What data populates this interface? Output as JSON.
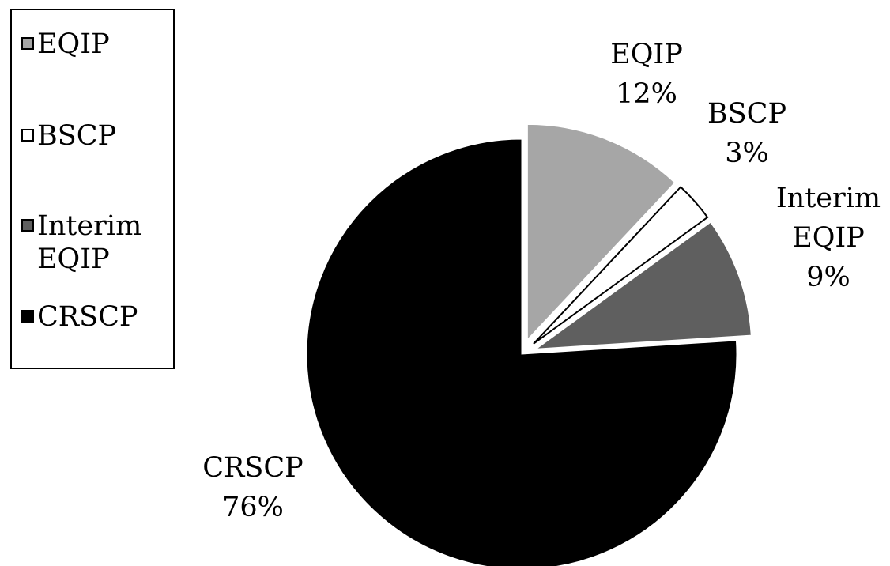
{
  "chart_data": {
    "type": "pie",
    "title": "",
    "slices": [
      {
        "label": "EQIP",
        "label_lines": [
          "EQIP"
        ],
        "value": 12,
        "value_label": "12%",
        "color": "#a6a6a6"
      },
      {
        "label": "BSCP",
        "label_lines": [
          "BSCP"
        ],
        "value": 3,
        "value_label": "3%",
        "color": "#ffffff"
      },
      {
        "label": "Interim EQIP",
        "label_lines": [
          "Interim",
          "EQIP"
        ],
        "value": 9,
        "value_label": "9%",
        "color": "#5f5f5f"
      },
      {
        "label": "CRSCP",
        "label_lines": [
          "CRSCP"
        ],
        "value": 76,
        "value_label": "76%",
        "color": "#000000"
      }
    ],
    "exploded": true,
    "legend": {
      "placement": "top-left",
      "items": [
        {
          "label": "EQIP",
          "color": "#a6a6a6"
        },
        {
          "label": "BSCP",
          "color": "#ffffff"
        },
        {
          "label": "Interim\nEQIP",
          "color": "#5f5f5f"
        },
        {
          "label": "CRSCP",
          "color": "#000000"
        }
      ]
    }
  }
}
